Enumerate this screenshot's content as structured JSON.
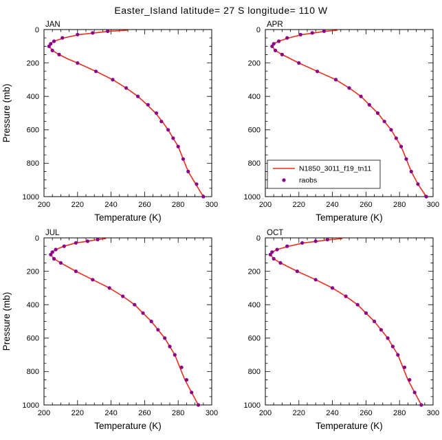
{
  "title": "Easter_Island  latitude= 27 S longitude= 110 W",
  "colors": {
    "model_line": "#ef2b19",
    "obs_marker": "#8b008b",
    "axis": "#000000",
    "background": "#ffffff"
  },
  "legend": {
    "model_label": "N1850_3011_f19_tn11",
    "obs_label": "raobs"
  },
  "axes": {
    "xlabel": "Temperature (K)",
    "ylabel": "Pressure (mb)",
    "xlim": [
      200,
      300
    ],
    "ylim": [
      0,
      1000
    ],
    "y_inverted": true,
    "xticks": [
      200,
      220,
      240,
      260,
      280,
      300
    ],
    "yticks": [
      0,
      200,
      400,
      600,
      800,
      1000
    ],
    "x_minor_step": 5,
    "y_minor_step": 50,
    "grid": false
  },
  "chart_data": [
    {
      "type": "line+scatter",
      "label": "JAN",
      "model": {
        "pressure": [
          4,
          10,
          20,
          30,
          50,
          70,
          85,
          100,
          125,
          150,
          175,
          200,
          250,
          300,
          350,
          400,
          450,
          500,
          550,
          600,
          650,
          700,
          775,
          850,
          925,
          1000
        ],
        "temperature": [
          250,
          239,
          230,
          221,
          212,
          206,
          203.5,
          203,
          205,
          209,
          214,
          220,
          231,
          241,
          249,
          256,
          261.5,
          266.5,
          270.5,
          274,
          277,
          280,
          283,
          286,
          290.5,
          295
        ]
      },
      "obs": {
        "pressure": [
          10,
          20,
          30,
          50,
          70,
          85,
          100,
          125,
          150,
          200,
          250,
          300,
          350,
          400,
          450,
          500,
          550,
          600,
          650,
          700,
          775,
          850,
          925,
          1000
        ],
        "temperature": [
          238,
          229,
          220,
          211,
          206,
          204,
          203,
          205,
          209,
          220,
          231,
          241,
          249,
          256,
          262,
          267,
          270,
          274,
          277,
          280,
          283,
          286,
          291,
          295
        ]
      }
    },
    {
      "type": "line+scatter",
      "label": "APR",
      "model": {
        "pressure": [
          4,
          10,
          20,
          30,
          50,
          70,
          85,
          100,
          125,
          150,
          175,
          200,
          250,
          300,
          350,
          400,
          450,
          500,
          550,
          600,
          650,
          700,
          775,
          850,
          925,
          1000
        ],
        "temperature": [
          243,
          236,
          229,
          222,
          214,
          208,
          205,
          204,
          206,
          210,
          215,
          220,
          231,
          242,
          250,
          257,
          262,
          267,
          271,
          275,
          278,
          281,
          284,
          287,
          291,
          296
        ]
      },
      "obs": {
        "pressure": [
          10,
          20,
          30,
          50,
          70,
          85,
          100,
          125,
          150,
          200,
          250,
          300,
          350,
          400,
          450,
          500,
          550,
          600,
          650,
          700,
          775,
          850,
          925,
          1000
        ],
        "temperature": [
          235,
          228,
          221,
          213,
          208,
          205,
          204,
          206,
          210,
          220,
          231,
          242,
          250,
          257,
          262,
          267,
          271,
          275,
          278,
          281,
          284,
          287,
          291,
          296
        ]
      }
    },
    {
      "type": "line+scatter",
      "label": "JUL",
      "model": {
        "pressure": [
          4,
          10,
          20,
          30,
          50,
          70,
          85,
          100,
          125,
          150,
          175,
          200,
          250,
          300,
          350,
          400,
          450,
          500,
          550,
          600,
          650,
          700,
          775,
          850,
          925,
          1000
        ],
        "temperature": [
          237,
          232,
          226,
          219,
          212,
          207,
          205,
          204,
          206,
          210,
          214.5,
          219,
          229,
          239,
          247,
          254,
          259,
          264,
          268,
          272,
          275,
          278,
          281,
          284,
          288,
          292
        ]
      },
      "obs": {
        "pressure": [
          10,
          20,
          30,
          50,
          70,
          85,
          100,
          125,
          150,
          200,
          250,
          300,
          350,
          400,
          450,
          500,
          550,
          600,
          650,
          700,
          775,
          850,
          925,
          1000
        ],
        "temperature": [
          232,
          226,
          219,
          212,
          207,
          205,
          204,
          206,
          210,
          219,
          229,
          239,
          247,
          254,
          259,
          264,
          268,
          272,
          275,
          278,
          282,
          285,
          288,
          292
        ]
      }
    },
    {
      "type": "line+scatter",
      "label": "OCT",
      "model": {
        "pressure": [
          4,
          10,
          20,
          30,
          50,
          70,
          85,
          100,
          125,
          150,
          175,
          200,
          250,
          300,
          350,
          400,
          450,
          500,
          550,
          600,
          650,
          700,
          775,
          850,
          925,
          1000
        ],
        "temperature": [
          246,
          239,
          231,
          223,
          214,
          207,
          204,
          203,
          205,
          209,
          214,
          219,
          230,
          240,
          248,
          255,
          260,
          265,
          269,
          273,
          276,
          279,
          282,
          285,
          289,
          293
        ]
      },
      "obs": {
        "pressure": [
          10,
          20,
          30,
          50,
          70,
          85,
          100,
          125,
          150,
          200,
          250,
          300,
          350,
          400,
          450,
          500,
          550,
          600,
          650,
          700,
          775,
          850,
          925,
          1000
        ],
        "temperature": [
          237,
          230,
          222,
          213,
          207,
          204,
          203,
          205,
          209,
          219,
          230,
          240,
          248,
          255,
          260,
          265,
          269,
          273,
          276,
          279,
          283,
          286,
          289,
          293
        ]
      }
    }
  ]
}
